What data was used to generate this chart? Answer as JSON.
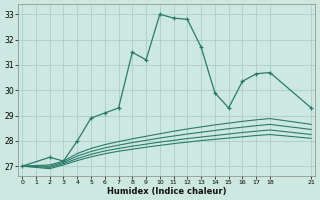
{
  "xlabel": "Humidex (Indice chaleur)",
  "background_color": "#cce8e0",
  "grid_color": "#aacfc8",
  "line_color": "#2a7a6a",
  "main_line_x": [
    0,
    2,
    3,
    4,
    5,
    6,
    7,
    8,
    9,
    10,
    11,
    12,
    13,
    14,
    15,
    16,
    17,
    18,
    21
  ],
  "main_line_y": [
    27.0,
    27.35,
    27.2,
    28.0,
    28.9,
    29.1,
    29.3,
    31.5,
    31.2,
    33.0,
    32.85,
    32.8,
    31.7,
    29.9,
    29.3,
    30.35,
    30.65,
    30.7,
    29.3
  ],
  "curved_lines": [
    {
      "x": [
        0,
        2,
        3,
        4,
        5,
        6,
        7,
        8,
        9,
        10,
        11,
        12,
        13,
        14,
        15,
        16,
        17,
        18,
        21
      ],
      "y": [
        27.0,
        27.05,
        27.2,
        27.5,
        27.7,
        27.85,
        27.97,
        28.08,
        28.18,
        28.28,
        28.38,
        28.47,
        28.55,
        28.63,
        28.7,
        28.77,
        28.83,
        28.88,
        28.65
      ]
    },
    {
      "x": [
        0,
        2,
        3,
        4,
        5,
        6,
        7,
        8,
        9,
        10,
        11,
        12,
        13,
        14,
        15,
        16,
        17,
        18,
        21
      ],
      "y": [
        27.0,
        27.0,
        27.15,
        27.4,
        27.58,
        27.72,
        27.83,
        27.93,
        28.02,
        28.11,
        28.19,
        28.27,
        28.34,
        28.41,
        28.48,
        28.54,
        28.6,
        28.65,
        28.45
      ]
    },
    {
      "x": [
        0,
        2,
        3,
        4,
        5,
        6,
        7,
        8,
        9,
        10,
        11,
        12,
        13,
        14,
        15,
        16,
        17,
        18,
        21
      ],
      "y": [
        27.0,
        26.95,
        27.1,
        27.3,
        27.47,
        27.6,
        27.7,
        27.79,
        27.87,
        27.95,
        28.02,
        28.09,
        28.15,
        28.21,
        28.27,
        28.33,
        28.38,
        28.43,
        28.25
      ]
    },
    {
      "x": [
        0,
        2,
        3,
        4,
        5,
        6,
        7,
        8,
        9,
        10,
        11,
        12,
        13,
        14,
        15,
        16,
        17,
        18,
        21
      ],
      "y": [
        27.0,
        26.9,
        27.05,
        27.22,
        27.37,
        27.49,
        27.59,
        27.67,
        27.75,
        27.82,
        27.89,
        27.95,
        28.01,
        28.06,
        28.11,
        28.16,
        28.21,
        28.25,
        28.1
      ]
    }
  ],
  "ylim": [
    26.6,
    33.4
  ],
  "xlim": [
    -0.3,
    21.3
  ],
  "yticks": [
    27,
    28,
    29,
    30,
    31,
    32,
    33
  ],
  "xticks": [
    0,
    1,
    2,
    3,
    4,
    5,
    6,
    7,
    8,
    9,
    10,
    11,
    12,
    13,
    14,
    15,
    16,
    17,
    18,
    21
  ]
}
